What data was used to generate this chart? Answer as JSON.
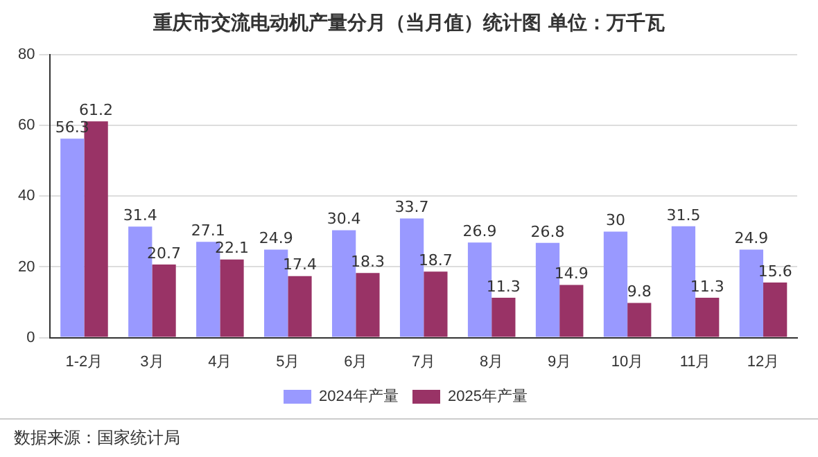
{
  "chart_data": {
    "type": "bar",
    "title": "重庆市交流电动机产量分月（当月值）统计图 单位：万千瓦",
    "categories": [
      "1-2月",
      "3月",
      "4月",
      "5月",
      "6月",
      "7月",
      "8月",
      "9月",
      "10月",
      "11月",
      "12月"
    ],
    "series": [
      {
        "name": "2024年产量",
        "color": "#9999ff",
        "values": [
          56.3,
          31.4,
          27.1,
          24.9,
          30.4,
          33.7,
          26.9,
          26.8,
          30,
          31.5,
          24.9
        ]
      },
      {
        "name": "2025年产量",
        "color": "#993366",
        "values": [
          61.2,
          20.7,
          22.1,
          17.4,
          18.3,
          18.7,
          11.3,
          14.9,
          9.8,
          11.3,
          15.6
        ]
      }
    ],
    "ylim": [
      0,
      80
    ],
    "yticks": [
      0,
      20,
      40,
      60,
      80
    ],
    "grid": "y",
    "legend": "bottom",
    "data_labels": true,
    "annotations": [
      "数据来源：国家统计局"
    ]
  }
}
